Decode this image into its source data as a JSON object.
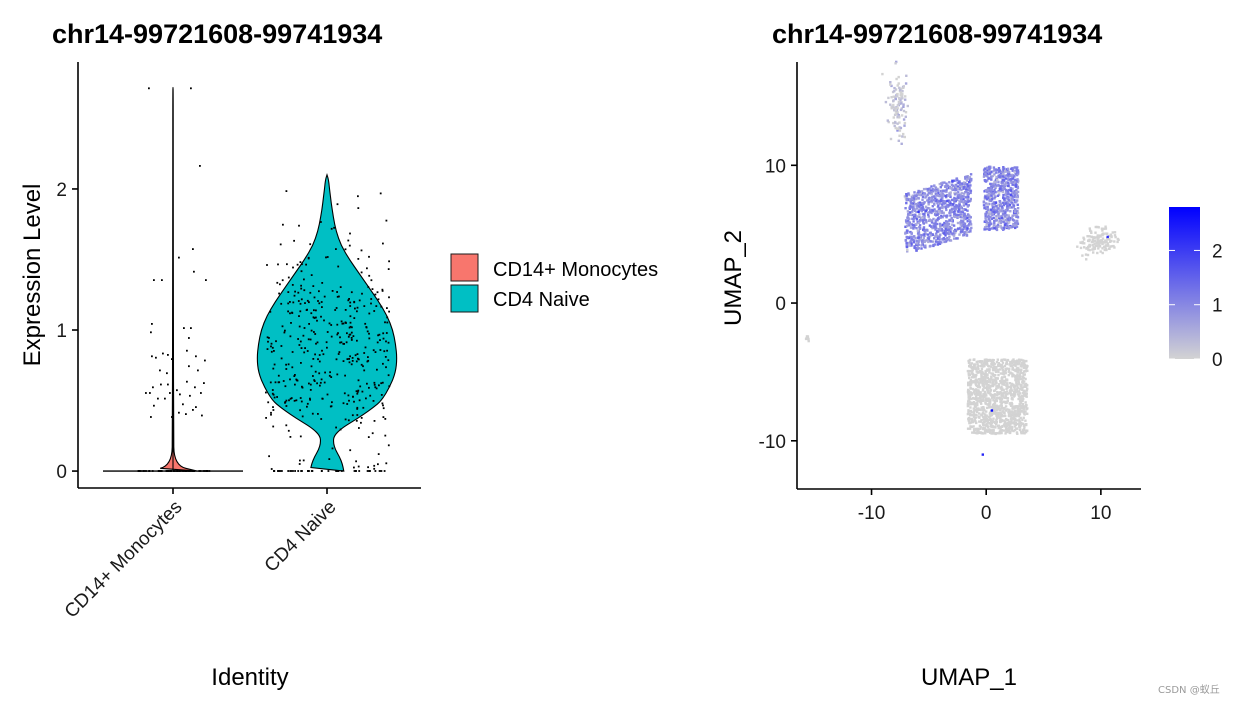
{
  "watermark": "CSDN @蚁丘",
  "colors": {
    "cd14_fill": "#F8766D",
    "cd4_fill": "#00BFC4",
    "umap_low": "#D3D3D3",
    "umap_high": "#0000FF"
  },
  "chart_data": [
    {
      "type": "violin",
      "title": "chr14-99721608-99741934",
      "xlabel": "Identity",
      "ylabel": "Expression Level",
      "categories": [
        "CD14+ Monocytes",
        "CD4 Naive"
      ],
      "ylim": [
        -0.12,
        2.9
      ],
      "yticks": [
        0,
        1,
        2
      ],
      "legend": {
        "placement": "right",
        "entries": [
          {
            "label": "CD14+ Monocytes",
            "color": "#F8766D"
          },
          {
            "label": "CD4 Naive",
            "color": "#00BFC4"
          }
        ]
      },
      "series": [
        {
          "name": "CD14+ Monocytes",
          "max": 2.72,
          "density": [
            [
              0,
              0.35
            ],
            [
              0.04,
              0.015
            ],
            [
              0.3,
              0.008
            ],
            [
              1.0,
              0.006
            ],
            [
              2.0,
              0.004
            ],
            [
              2.72,
              0.003
            ]
          ],
          "points_nonzero": [
            [
              -0.25,
              2.72
            ],
            [
              0.17,
              2.72
            ],
            [
              0.26,
              2.17
            ],
            [
              0.05,
              1.52
            ],
            [
              0.19,
              1.58
            ],
            [
              0.2,
              1.42
            ],
            [
              -0.2,
              1.36
            ],
            [
              -0.12,
              1.36
            ],
            [
              0.32,
              1.36
            ],
            [
              -0.22,
              1.05
            ],
            [
              -0.23,
              0.99
            ],
            [
              0.1,
              1.02
            ],
            [
              0.17,
              1.02
            ],
            [
              0.15,
              0.95
            ],
            [
              -0.22,
              0.82
            ],
            [
              -0.18,
              0.81
            ],
            [
              -0.11,
              0.84
            ],
            [
              -0.06,
              0.83
            ],
            [
              -0.02,
              0.8
            ],
            [
              0.13,
              0.86
            ],
            [
              0.22,
              0.82
            ],
            [
              0.31,
              0.79
            ],
            [
              -0.14,
              0.72
            ],
            [
              -0.07,
              0.7
            ],
            [
              -0.01,
              0.75
            ],
            [
              0.15,
              0.75
            ],
            [
              0.24,
              0.72
            ],
            [
              -0.21,
              0.6
            ],
            [
              -0.13,
              0.62
            ],
            [
              -0.06,
              0.62
            ],
            [
              0.03,
              0.58
            ],
            [
              0.13,
              0.64
            ],
            [
              0.21,
              0.6
            ],
            [
              0.3,
              0.63
            ],
            [
              -0.28,
              0.56
            ],
            [
              -0.24,
              0.56
            ],
            [
              -0.16,
              0.52
            ],
            [
              -0.04,
              0.56
            ],
            [
              0.06,
              0.55
            ],
            [
              0.16,
              0.54
            ],
            [
              0.27,
              0.56
            ],
            [
              -0.2,
              0.47
            ],
            [
              -0.09,
              0.52
            ],
            [
              0.09,
              0.48
            ],
            [
              0.22,
              0.46
            ],
            [
              -0.23,
              0.39
            ],
            [
              -0.02,
              0.39
            ],
            [
              0.05,
              0.42
            ],
            [
              0.12,
              0.41
            ],
            [
              0.19,
              0.44
            ],
            [
              0.28,
              0.4
            ]
          ],
          "zero_points_jitter": [
            -0.36,
            0.36
          ]
        },
        {
          "name": "CD4 Naive",
          "max": 2.1,
          "density": [
            [
              0,
              0.12
            ],
            [
              0.05,
              0.11
            ],
            [
              0.1,
              0.09
            ],
            [
              0.15,
              0.06
            ],
            [
              0.2,
              0.045
            ],
            [
              0.25,
              0.05
            ],
            [
              0.3,
              0.1
            ],
            [
              0.35,
              0.18
            ],
            [
              0.4,
              0.26
            ],
            [
              0.45,
              0.33
            ],
            [
              0.5,
              0.39
            ],
            [
              0.6,
              0.45
            ],
            [
              0.7,
              0.49
            ],
            [
              0.8,
              0.5
            ],
            [
              0.9,
              0.49
            ],
            [
              1.0,
              0.47
            ],
            [
              1.1,
              0.43
            ],
            [
              1.2,
              0.37
            ],
            [
              1.3,
              0.3
            ],
            [
              1.4,
              0.23
            ],
            [
              1.5,
              0.16
            ],
            [
              1.6,
              0.1
            ],
            [
              1.7,
              0.065
            ],
            [
              1.8,
              0.045
            ],
            [
              1.9,
              0.03
            ],
            [
              2.0,
              0.018
            ],
            [
              2.07,
              0.01
            ],
            [
              2.1,
              0.0
            ]
          ],
          "n_points": 420,
          "zero_points_jitter": [
            -0.4,
            0.4
          ]
        }
      ]
    },
    {
      "type": "scatter",
      "title": "chr14-99721608-99741934",
      "xlabel": "UMAP_1",
      "ylabel": "UMAP_2",
      "xlim": [
        -16.5,
        13.5
      ],
      "ylim": [
        -13.5,
        17.5
      ],
      "xticks": [
        -10,
        0,
        10
      ],
      "yticks": [
        -10,
        0,
        10
      ],
      "color_scale": {
        "low": "#D3D3D3",
        "high": "#0000FF",
        "min": 0,
        "max": 2.8,
        "ticks": [
          0,
          1,
          2
        ],
        "placement": "right"
      },
      "clusters": [
        {
          "cx": -7.7,
          "cy": 14.2,
          "sx": 0.35,
          "sy": 1.1,
          "n": 120,
          "expr": 0.15,
          "shape": "small-top"
        },
        {
          "cx": -4.2,
          "cy": 7.5,
          "sx": 1.8,
          "sy": 1.6,
          "n": 900,
          "expr": 1.0,
          "shape": "cd4-main"
        },
        {
          "cx": 1.3,
          "cy": 7.6,
          "sx": 1.1,
          "sy": 1.8,
          "n": 600,
          "expr": 1.0,
          "shape": "cd4-right"
        },
        {
          "cx": 9.8,
          "cy": 4.5,
          "sx": 0.8,
          "sy": 0.5,
          "n": 140,
          "expr": 0.0,
          "shape": "right-small"
        },
        {
          "cx": 1.0,
          "cy": -6.8,
          "sx": 1.7,
          "sy": 1.9,
          "n": 1200,
          "expr": 0.0,
          "shape": "cd14-main"
        },
        {
          "cx": -15.6,
          "cy": -2.6,
          "sx": 0.12,
          "sy": 0.1,
          "n": 8,
          "expr": 0.0,
          "shape": "outlier"
        }
      ]
    }
  ]
}
